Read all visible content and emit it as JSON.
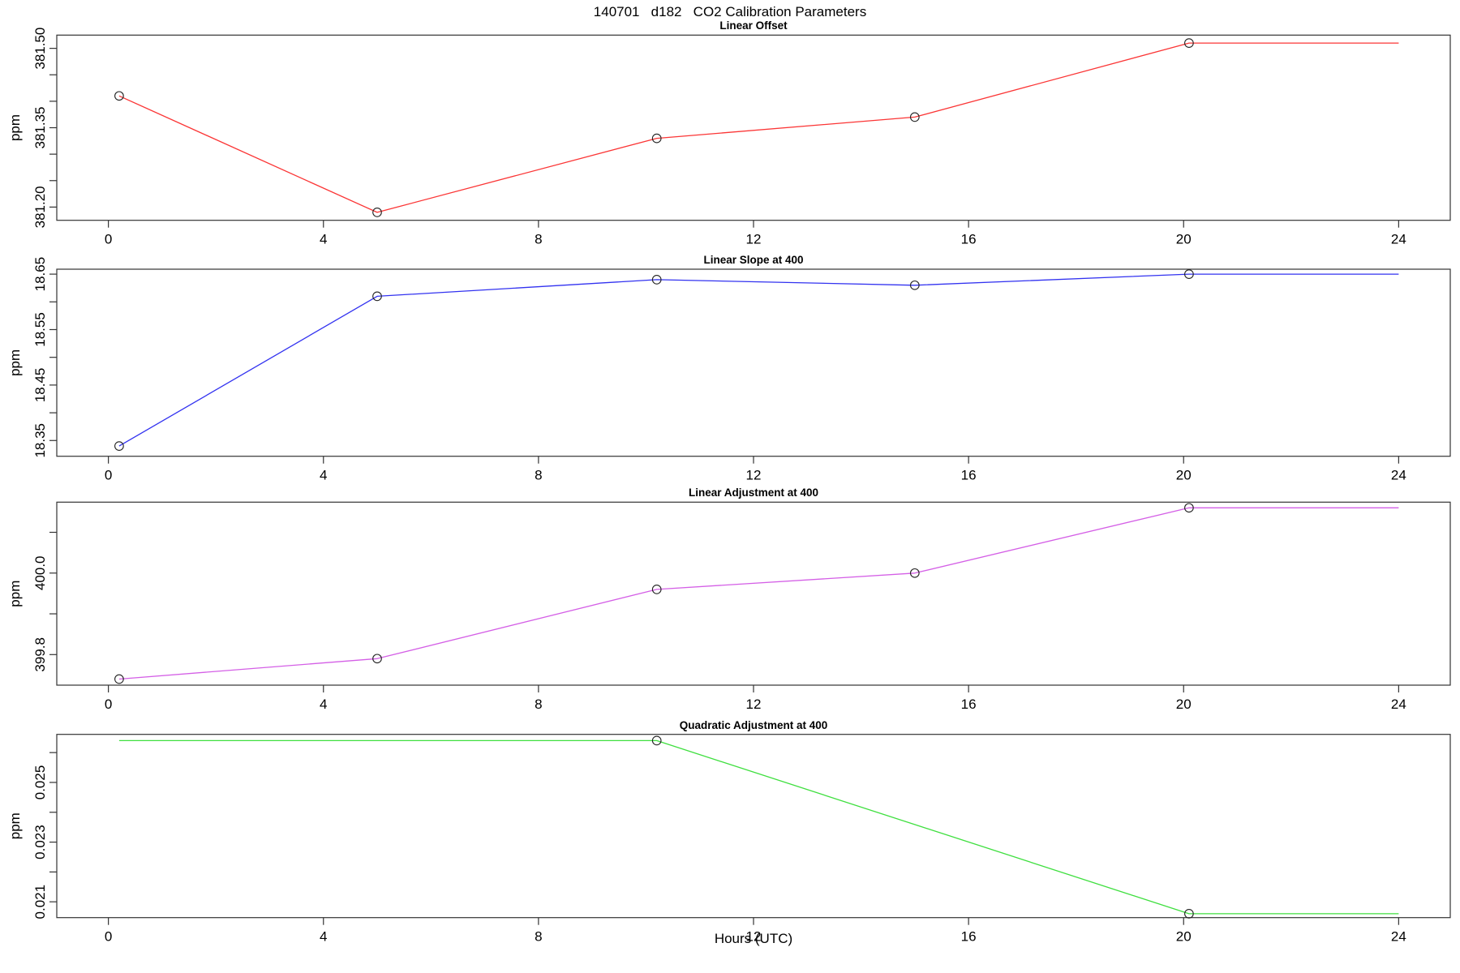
{
  "title": "140701   d182   CO2 Calibration Parameters",
  "x_axis": {
    "label": "Hours (UTC)",
    "ticks": [
      0,
      4,
      8,
      12,
      16,
      20,
      24
    ],
    "xlim": [
      -0.96,
      24.96
    ]
  },
  "chart_data": [
    {
      "type": "line",
      "title": "Linear Offset",
      "ylabel": "ppm",
      "color": "#fb3535",
      "marker": "open-circle",
      "ylim": [
        381.175,
        381.525
      ],
      "yticks": [
        381.2,
        381.25,
        381.3,
        381.35,
        381.4,
        381.45,
        381.5
      ],
      "ytick_labels": [
        "381.20",
        "",
        "",
        "381.35",
        "",
        "",
        "381.50"
      ],
      "points": [
        [
          0.2,
          381.41
        ],
        [
          5.0,
          381.19
        ],
        [
          10.2,
          381.33
        ],
        [
          15.0,
          381.37
        ],
        [
          20.1,
          381.51
        ]
      ],
      "line": [
        [
          0.2,
          381.41
        ],
        [
          5.0,
          381.19
        ],
        [
          10.2,
          381.33
        ],
        [
          15.0,
          381.37
        ],
        [
          20.1,
          381.51
        ],
        [
          24,
          381.51
        ]
      ]
    },
    {
      "type": "line",
      "title": "Linear Slope at 400",
      "ylabel": "ppm",
      "color": "#3232f0",
      "marker": "open-circle",
      "ylim": [
        18.3216,
        18.6589
      ],
      "yticks": [
        18.35,
        18.4,
        18.45,
        18.5,
        18.55,
        18.6,
        18.65
      ],
      "ytick_labels": [
        "18.35",
        "",
        "18.45",
        "",
        "18.55",
        "",
        "18.65"
      ],
      "points": [
        [
          0.2,
          18.34
        ],
        [
          5.0,
          18.61
        ],
        [
          10.2,
          18.64
        ],
        [
          15.0,
          18.63
        ],
        [
          20.1,
          18.65
        ]
      ],
      "line": [
        [
          0.2,
          18.34
        ],
        [
          5.0,
          18.61
        ],
        [
          10.2,
          18.64
        ],
        [
          15.0,
          18.63
        ],
        [
          20.1,
          18.65
        ],
        [
          24,
          18.65
        ]
      ]
    },
    {
      "type": "line",
      "title": "Linear Adjustment at 400",
      "ylabel": "ppm",
      "color": "#d45fe6",
      "marker": "open-circle",
      "ylim": [
        399.725,
        400.174
      ],
      "yticks": [
        399.8,
        399.9,
        400.0,
        400.1
      ],
      "ytick_labels": [
        "399.8",
        "",
        "400.0",
        ""
      ],
      "points": [
        [
          0.2,
          399.74
        ],
        [
          5.0,
          399.79
        ],
        [
          10.2,
          399.96
        ],
        [
          15.0,
          400.0
        ],
        [
          20.1,
          400.16
        ]
      ],
      "line": [
        [
          0.2,
          399.74
        ],
        [
          5.0,
          399.79
        ],
        [
          10.2,
          399.96
        ],
        [
          15.0,
          400.0
        ],
        [
          20.1,
          400.16
        ],
        [
          24,
          400.16
        ]
      ]
    },
    {
      "type": "line",
      "title": "Quadratic Adjustment at 400",
      "ylabel": "ppm",
      "color": "#3fdf3f",
      "marker": "open-circle",
      "ylim": [
        0.02047,
        0.02661
      ],
      "yticks": [
        0.021,
        0.022,
        0.023,
        0.024,
        0.025,
        0.026
      ],
      "ytick_labels": [
        "0.021",
        "",
        "0.023",
        "",
        "0.025",
        ""
      ],
      "points": [
        [
          10.2,
          0.0264
        ],
        [
          20.1,
          0.0206
        ]
      ],
      "line": [
        [
          0.2,
          0.0264
        ],
        [
          10.2,
          0.0264
        ],
        [
          20.1,
          0.0206
        ],
        [
          24,
          0.0206
        ]
      ]
    }
  ]
}
